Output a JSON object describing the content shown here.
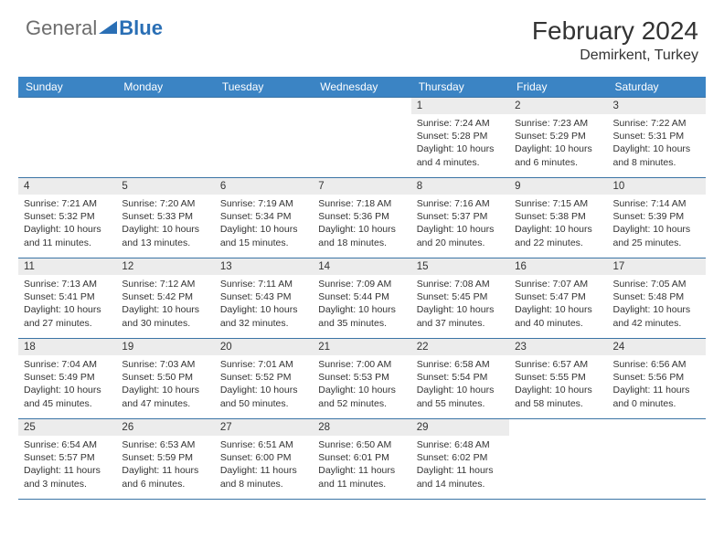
{
  "logo": {
    "text1": "General",
    "text2": "Blue"
  },
  "title": "February 2024",
  "location": "Demirkent, Turkey",
  "headers": [
    "Sunday",
    "Monday",
    "Tuesday",
    "Wednesday",
    "Thursday",
    "Friday",
    "Saturday"
  ],
  "colors": {
    "header_bg": "#3b84c4",
    "border": "#3b74a5",
    "daynum_bg": "#ececec"
  },
  "weeks": [
    [
      {
        "n": "",
        "sr": "",
        "ss": "",
        "dl": ""
      },
      {
        "n": "",
        "sr": "",
        "ss": "",
        "dl": ""
      },
      {
        "n": "",
        "sr": "",
        "ss": "",
        "dl": ""
      },
      {
        "n": "",
        "sr": "",
        "ss": "",
        "dl": ""
      },
      {
        "n": "1",
        "sr": "7:24 AM",
        "ss": "5:28 PM",
        "dl": "10 hours and 4 minutes."
      },
      {
        "n": "2",
        "sr": "7:23 AM",
        "ss": "5:29 PM",
        "dl": "10 hours and 6 minutes."
      },
      {
        "n": "3",
        "sr": "7:22 AM",
        "ss": "5:31 PM",
        "dl": "10 hours and 8 minutes."
      }
    ],
    [
      {
        "n": "4",
        "sr": "7:21 AM",
        "ss": "5:32 PM",
        "dl": "10 hours and 11 minutes."
      },
      {
        "n": "5",
        "sr": "7:20 AM",
        "ss": "5:33 PM",
        "dl": "10 hours and 13 minutes."
      },
      {
        "n": "6",
        "sr": "7:19 AM",
        "ss": "5:34 PM",
        "dl": "10 hours and 15 minutes."
      },
      {
        "n": "7",
        "sr": "7:18 AM",
        "ss": "5:36 PM",
        "dl": "10 hours and 18 minutes."
      },
      {
        "n": "8",
        "sr": "7:16 AM",
        "ss": "5:37 PM",
        "dl": "10 hours and 20 minutes."
      },
      {
        "n": "9",
        "sr": "7:15 AM",
        "ss": "5:38 PM",
        "dl": "10 hours and 22 minutes."
      },
      {
        "n": "10",
        "sr": "7:14 AM",
        "ss": "5:39 PM",
        "dl": "10 hours and 25 minutes."
      }
    ],
    [
      {
        "n": "11",
        "sr": "7:13 AM",
        "ss": "5:41 PM",
        "dl": "10 hours and 27 minutes."
      },
      {
        "n": "12",
        "sr": "7:12 AM",
        "ss": "5:42 PM",
        "dl": "10 hours and 30 minutes."
      },
      {
        "n": "13",
        "sr": "7:11 AM",
        "ss": "5:43 PM",
        "dl": "10 hours and 32 minutes."
      },
      {
        "n": "14",
        "sr": "7:09 AM",
        "ss": "5:44 PM",
        "dl": "10 hours and 35 minutes."
      },
      {
        "n": "15",
        "sr": "7:08 AM",
        "ss": "5:45 PM",
        "dl": "10 hours and 37 minutes."
      },
      {
        "n": "16",
        "sr": "7:07 AM",
        "ss": "5:47 PM",
        "dl": "10 hours and 40 minutes."
      },
      {
        "n": "17",
        "sr": "7:05 AM",
        "ss": "5:48 PM",
        "dl": "10 hours and 42 minutes."
      }
    ],
    [
      {
        "n": "18",
        "sr": "7:04 AM",
        "ss": "5:49 PM",
        "dl": "10 hours and 45 minutes."
      },
      {
        "n": "19",
        "sr": "7:03 AM",
        "ss": "5:50 PM",
        "dl": "10 hours and 47 minutes."
      },
      {
        "n": "20",
        "sr": "7:01 AM",
        "ss": "5:52 PM",
        "dl": "10 hours and 50 minutes."
      },
      {
        "n": "21",
        "sr": "7:00 AM",
        "ss": "5:53 PM",
        "dl": "10 hours and 52 minutes."
      },
      {
        "n": "22",
        "sr": "6:58 AM",
        "ss": "5:54 PM",
        "dl": "10 hours and 55 minutes."
      },
      {
        "n": "23",
        "sr": "6:57 AM",
        "ss": "5:55 PM",
        "dl": "10 hours and 58 minutes."
      },
      {
        "n": "24",
        "sr": "6:56 AM",
        "ss": "5:56 PM",
        "dl": "11 hours and 0 minutes."
      }
    ],
    [
      {
        "n": "25",
        "sr": "6:54 AM",
        "ss": "5:57 PM",
        "dl": "11 hours and 3 minutes."
      },
      {
        "n": "26",
        "sr": "6:53 AM",
        "ss": "5:59 PM",
        "dl": "11 hours and 6 minutes."
      },
      {
        "n": "27",
        "sr": "6:51 AM",
        "ss": "6:00 PM",
        "dl": "11 hours and 8 minutes."
      },
      {
        "n": "28",
        "sr": "6:50 AM",
        "ss": "6:01 PM",
        "dl": "11 hours and 11 minutes."
      },
      {
        "n": "29",
        "sr": "6:48 AM",
        "ss": "6:02 PM",
        "dl": "11 hours and 14 minutes."
      },
      {
        "n": "",
        "sr": "",
        "ss": "",
        "dl": ""
      },
      {
        "n": "",
        "sr": "",
        "ss": "",
        "dl": ""
      }
    ]
  ],
  "labels": {
    "sunrise": "Sunrise: ",
    "sunset": "Sunset: ",
    "daylight": "Daylight: "
  }
}
